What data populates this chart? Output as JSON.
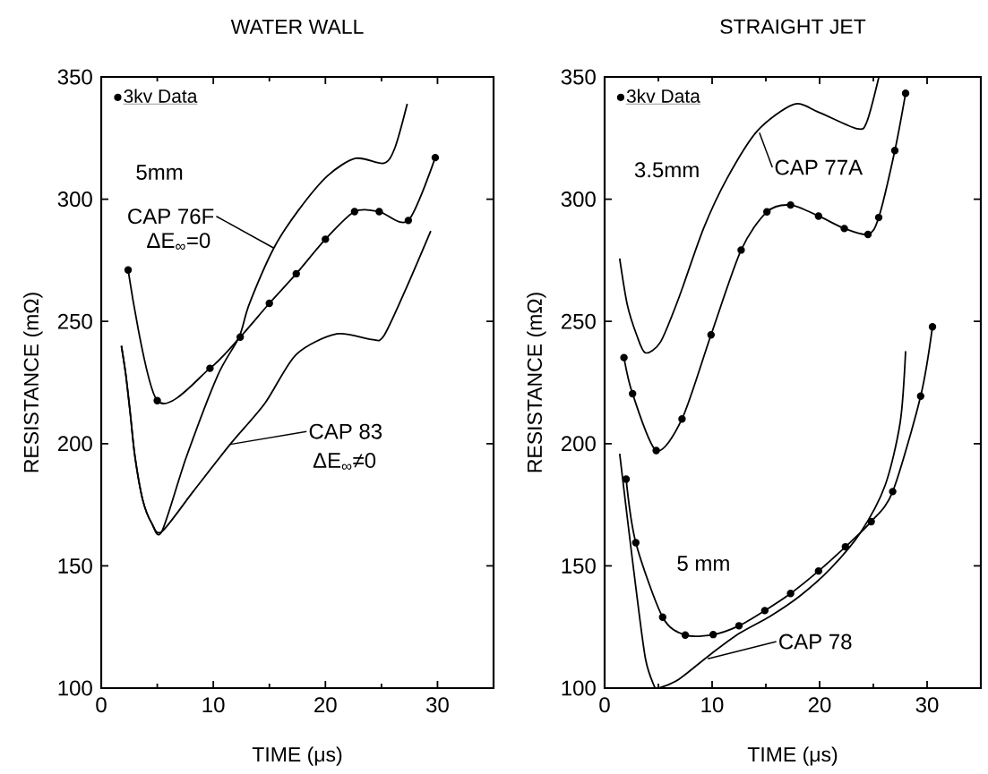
{
  "chart_data": [
    {
      "type": "line",
      "title": "WATER WALL",
      "xlabel": "TIME (μs)",
      "ylabel": "RESISTANCE (mΩ)",
      "xlim": [
        0,
        35
      ],
      "ylim": [
        100,
        350
      ],
      "xticks": [
        0,
        10,
        20,
        30
      ],
      "yticks": [
        100,
        150,
        200,
        250,
        300,
        350
      ],
      "legend": "top left",
      "series": [
        {
          "name": "3kv Data",
          "color": "#000000",
          "marker": "circle",
          "x": [
            2.4,
            5.0,
            9.7,
            12.4,
            15.0,
            17.4,
            20.0,
            22.6,
            24.8,
            27.4,
            29.8
          ],
          "values": [
            271,
            217.6,
            230.8,
            243.6,
            257.4,
            269.5,
            283.6,
            294.9,
            294.9,
            291.3,
            317
          ]
        },
        {
          "color": "#000000",
          "marker": "none",
          "x": [
            1.8,
            2.2,
            2.6,
            3.0,
            3.7,
            4.5,
            5.4,
            7.6,
            10.4,
            12.3,
            13.2,
            15.4,
            17.6,
            20.2,
            22.7,
            25.2,
            26.2,
            27.3
          ],
          "values": [
            240,
            228,
            212,
            195,
            177,
            167.5,
            164,
            194.6,
            228,
            243.6,
            257,
            280,
            295.5,
            309.6,
            316.7,
            314.7,
            321,
            339
          ]
        },
        {
          "color": "#000000",
          "marker": "none",
          "x": [
            1.8,
            2.2,
            2.6,
            3.0,
            3.7,
            4.5,
            5.4,
            8.2,
            11.5,
            14.6,
            17.4,
            21.0,
            24.1,
            25.2,
            27.2,
            29.4
          ],
          "values": [
            240,
            228,
            212,
            195,
            177,
            167.5,
            164,
            180.4,
            199.7,
            216.5,
            236.5,
            244.9,
            242.6,
            244,
            263.5,
            287
          ]
        }
      ],
      "annotations": [
        "5mm",
        {
          "text": "CAP 76F",
          "x": 15.4,
          "y": 280
        },
        "ΔE$_{∞}$=0",
        {
          "text": "CAP 83",
          "x": 11.5,
          "y": 199.7
        },
        "ΔE$_{∞}$≠0"
      ]
    },
    {
      "type": "line",
      "title": "STRAIGHT JET",
      "xlabel": "TIME (μs)",
      "ylabel": "RESISTANCE (mΩ)",
      "xlim": [
        0,
        35
      ],
      "ylim": [
        100,
        350
      ],
      "xticks": [
        0,
        10,
        20,
        30
      ],
      "yticks": [
        100,
        150,
        200,
        250,
        300,
        350
      ],
      "legend": "top left",
      "series": [
        {
          "name": "3kv Data",
          "color": "#000000",
          "marker": "circle",
          "x": [
            1.8,
            2.6,
            4.8,
            7.2,
            9.9,
            12.7,
            15.1,
            17.3,
            19.9,
            22.3,
            24.5,
            25.5,
            27.0,
            28.0
          ],
          "values": [
            235.2,
            220.4,
            197.2,
            210.1,
            244.5,
            279.2,
            294.8,
            297.6,
            293.1,
            288,
            285.6,
            292.5,
            319.9,
            343.3
          ]
        },
        {
          "color": "#000000",
          "marker": "none",
          "x": [
            1.4,
            2.1,
            3.0,
            3.8,
            5.2,
            6.9,
            9.2,
            11.4,
            14.2,
            17.6,
            19.9,
            23.5,
            24.4,
            25.5
          ],
          "values": [
            275.7,
            257,
            244.2,
            237.1,
            241.6,
            259.6,
            288,
            308.6,
            327.9,
            338.8,
            335.6,
            328.8,
            331.7,
            349.7
          ]
        },
        {
          "color": "#000000",
          "marker": "circle",
          "x": [
            2.0,
            2.9,
            5.4,
            7.5,
            10.1,
            12.5,
            14.9,
            17.3,
            19.9,
            22.4,
            24.8,
            26.8,
            29.4,
            30.5
          ],
          "values": [
            185.5,
            159.5,
            129.0,
            121.7,
            121.9,
            125.5,
            131.7,
            138.7,
            147.9,
            157.8,
            168.1,
            180.4,
            219.4,
            247.8
          ]
        },
        {
          "color": "#000000",
          "marker": "none",
          "x": [
            1.4,
            2.1,
            3.0,
            3.8,
            4.6,
            5.0,
            6.9,
            9.7,
            12.5,
            15.4,
            18.2,
            21.0,
            23.8,
            26.1,
            27.5,
            28.0
          ],
          "values": [
            195.9,
            170,
            137.8,
            112,
            101,
            100,
            103.6,
            113.3,
            122.3,
            129.4,
            137.8,
            148.8,
            163.6,
            183,
            208.8,
            237.8
          ]
        }
      ],
      "annotations": [
        "3.5mm",
        {
          "text": "CAP 77A",
          "x": 14.4,
          "y": 327.2
        },
        "5 mm",
        {
          "text": "CAP 78",
          "x": 9.6,
          "y": 112
        }
      ]
    }
  ]
}
